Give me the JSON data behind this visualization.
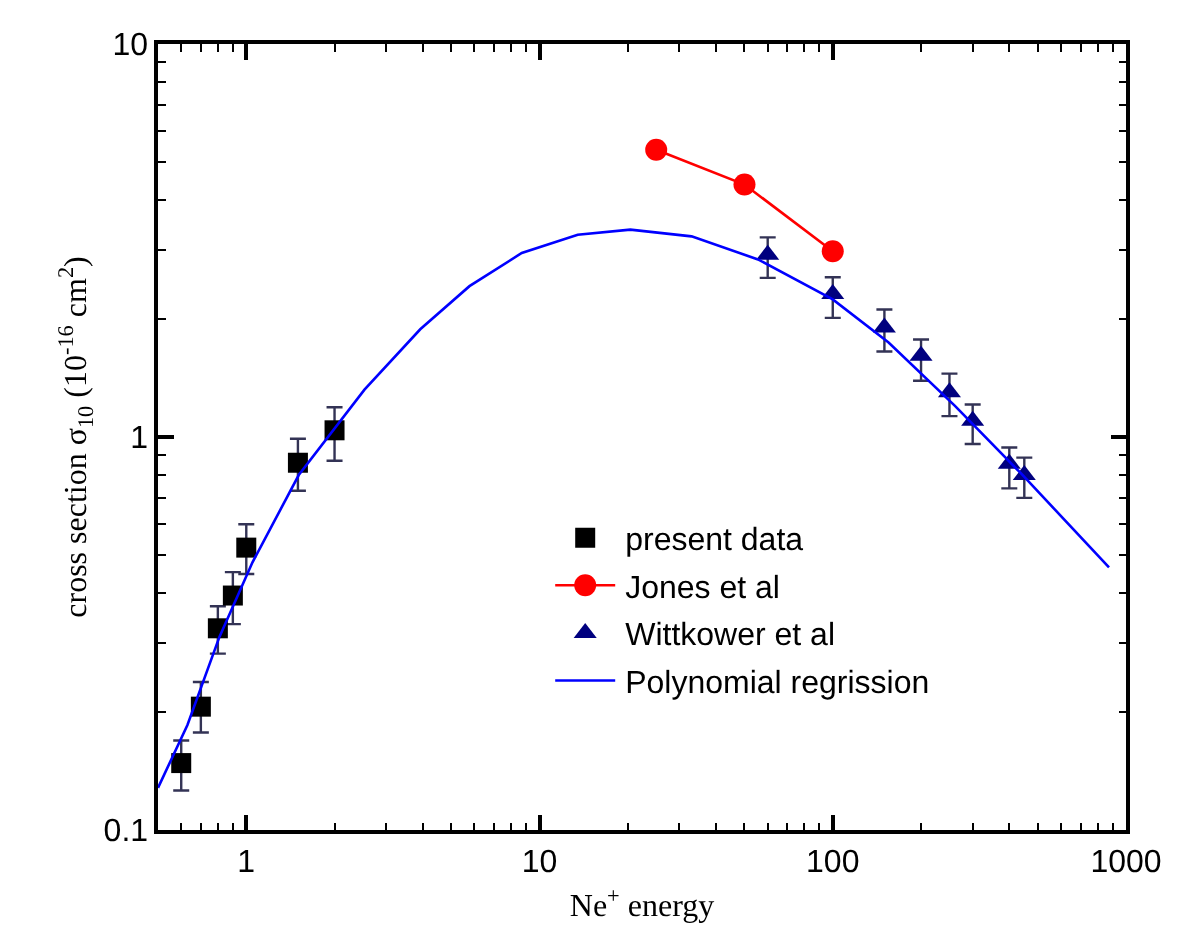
{
  "chart_data": {
    "type": "scatter",
    "xlabel": "Ne$^{+}$ energy",
    "ylabel": "cross section σ$_{10}$ (10$^{-16}$ cm$^{2}$)",
    "log": "xy",
    "grid": false,
    "legend": "bottom right",
    "xlim": [
      0.5,
      1000
    ],
    "ylim": [
      0.1,
      10
    ],
    "xticks": [
      1,
      10,
      100,
      1000,
      {
        "value": 0.6,
        "label": null
      },
      {
        "value": 0.7,
        "label": null
      },
      {
        "value": 0.8,
        "label": null
      },
      {
        "value": 0.9,
        "label": null
      },
      {
        "value": 2,
        "label": null
      },
      {
        "value": 3,
        "label": null
      },
      {
        "value": 4,
        "label": null
      },
      {
        "value": 5,
        "label": null
      },
      {
        "value": 6,
        "label": null
      },
      {
        "value": 7,
        "label": null
      },
      {
        "value": 8,
        "label": null
      },
      {
        "value": 9,
        "label": null
      },
      {
        "value": 20,
        "label": null
      },
      {
        "value": 30,
        "label": null
      },
      {
        "value": 40,
        "label": null
      },
      {
        "value": 50,
        "label": null
      },
      {
        "value": 60,
        "label": null
      },
      {
        "value": 70,
        "label": null
      },
      {
        "value": 80,
        "label": null
      },
      {
        "value": 90,
        "label": null
      },
      {
        "value": 200,
        "label": null
      },
      {
        "value": 300,
        "label": null
      },
      {
        "value": 400,
        "label": null
      },
      {
        "value": 500,
        "label": null
      },
      {
        "value": 600,
        "label": null
      },
      {
        "value": 700,
        "label": null
      },
      {
        "value": 800,
        "label": null
      },
      {
        "value": 900,
        "label": null
      }
    ],
    "yticks": [
      {
        "value": 0.1,
        "label": "0.1"
      },
      1,
      10,
      {
        "value": 0.2,
        "label": null
      },
      {
        "value": 0.3,
        "label": null
      },
      {
        "value": 0.4,
        "label": null
      },
      {
        "value": 0.5,
        "label": null
      },
      {
        "value": 0.6,
        "label": null
      },
      {
        "value": 0.7,
        "label": null
      },
      {
        "value": 0.8,
        "label": null
      },
      {
        "value": 0.9,
        "label": null
      },
      {
        "value": 2,
        "label": null
      },
      {
        "value": 3,
        "label": null
      },
      {
        "value": 4,
        "label": null
      },
      {
        "value": 5,
        "label": null
      },
      {
        "value": 6,
        "label": null
      },
      {
        "value": 7,
        "label": null
      },
      {
        "value": 8,
        "label": null
      },
      {
        "value": 9,
        "label": null
      }
    ],
    "series": [
      {
        "name": "present data",
        "marker": "square",
        "color": "#000000",
        "x": [
          0.6,
          0.7,
          0.8,
          0.9,
          1.0,
          1.5,
          2.0
        ],
        "values": [
          0.148,
          0.206,
          0.326,
          0.395,
          0.523,
          0.86,
          1.04
        ],
        "errors": [
          [
            0.126,
            0.169
          ],
          [
            0.177,
            0.238
          ],
          [
            0.281,
            0.371
          ],
          [
            0.334,
            0.453
          ],
          [
            0.448,
            0.6
          ],
          [
            0.73,
            0.99
          ],
          [
            0.87,
            1.19
          ]
        ]
      },
      {
        "name": "Jones et al",
        "type": "line",
        "marker": "circle",
        "line_style": "solid",
        "color": "#ff0000",
        "x": [
          25,
          50,
          100
        ],
        "values": [
          5.38,
          4.39,
          2.97
        ]
      },
      {
        "name": "Wittkower et al",
        "marker": "triangle",
        "color": "#00007f",
        "x": [
          60,
          100,
          150,
          200,
          250,
          300,
          400,
          450
        ],
        "values": [
          2.91,
          2.31,
          1.9,
          1.61,
          1.3,
          1.1,
          0.855,
          0.8
        ],
        "errors": [
          [
            2.54,
            3.22
          ],
          [
            2.01,
            2.55
          ],
          [
            1.65,
            2.11
          ],
          [
            1.39,
            1.77
          ],
          [
            1.13,
            1.45
          ],
          [
            0.96,
            1.21
          ],
          [
            0.74,
            0.94
          ],
          [
            0.7,
            0.886
          ]
        ]
      },
      {
        "name": "Polynomial regrission",
        "type": "line",
        "marker": "none",
        "line_style": "solid",
        "color": "#0000ff",
        "x": [
          0.5,
          0.63,
          0.81,
          1.05,
          1.51,
          2.53,
          3.92,
          5.77,
          8.7,
          13.5,
          20.4,
          33,
          55.6,
          100,
          155,
          261,
          437,
          875
        ],
        "values": [
          0.128,
          0.185,
          0.31,
          0.48,
          0.8,
          1.32,
          1.88,
          2.42,
          2.94,
          3.27,
          3.37,
          3.24,
          2.83,
          2.24,
          1.74,
          1.2,
          0.81,
          0.466
        ]
      }
    ]
  }
}
